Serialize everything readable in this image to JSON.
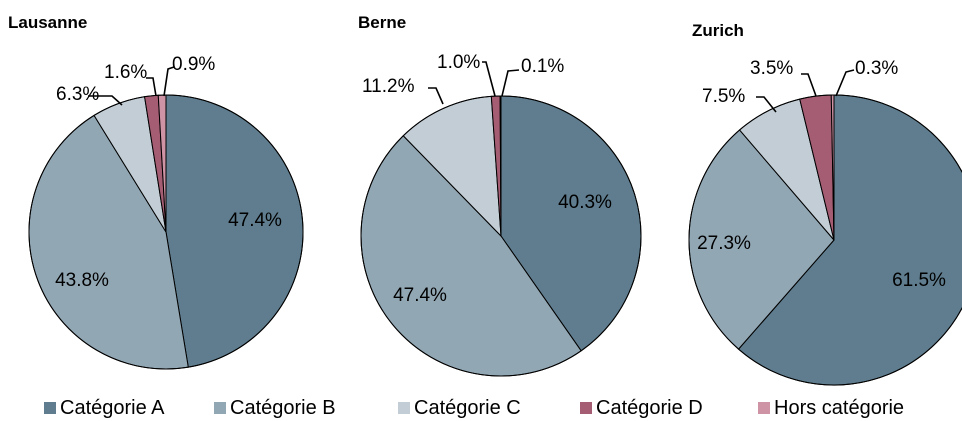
{
  "legend": [
    {
      "label": "Catégorie A",
      "color": "#5f7d8e"
    },
    {
      "label": "Catégorie B",
      "color": "#92a7b4"
    },
    {
      "label": "Catégorie C",
      "color": "#c2cdd5"
    },
    {
      "label": "Catégorie D",
      "color": "#a55d74"
    },
    {
      "label": "Hors catégorie",
      "color": "#cf93a6"
    }
  ],
  "chart_data": [
    {
      "type": "pie",
      "title": "Lausanne",
      "categories": [
        "Catégorie A",
        "Catégorie B",
        "Catégorie C",
        "Catégorie D",
        "Hors catégorie"
      ],
      "values": [
        47.4,
        43.8,
        6.3,
        1.6,
        0.9
      ],
      "labels": [
        "47.4%",
        "43.8%",
        "6.3%",
        "1.6%",
        "0.9%"
      ]
    },
    {
      "type": "pie",
      "title": "Berne",
      "categories": [
        "Catégorie A",
        "Catégorie B",
        "Catégorie C",
        "Catégorie D",
        "Hors catégorie"
      ],
      "values": [
        40.3,
        47.4,
        11.2,
        1.0,
        0.1
      ],
      "labels": [
        "40.3%",
        "47.4%",
        "11.2%",
        "1.0%",
        "0.1%"
      ]
    },
    {
      "type": "pie",
      "title": "Zurich",
      "categories": [
        "Catégorie A",
        "Catégorie B",
        "Catégorie C",
        "Catégorie D",
        "Hors catégorie"
      ],
      "values": [
        61.5,
        27.3,
        7.5,
        3.5,
        0.3
      ],
      "labels": [
        "61.5%",
        "27.3%",
        "7.5%",
        "3.5%",
        "0.3%"
      ]
    }
  ]
}
